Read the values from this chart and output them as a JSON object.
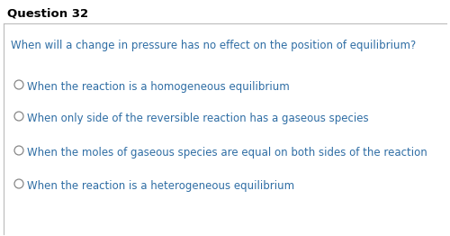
{
  "title": "Question 32",
  "question": "When will a change in pressure has no effect on the position of equilibrium?",
  "options": [
    "When the reaction is a homogeneous equilibrium",
    "When only side of the reversible reaction has a gaseous species",
    "When the moles of gaseous species are equal on both sides of the reaction",
    "When the reaction is a heterogeneous equilibrium"
  ],
  "bg_color": "#ffffff",
  "title_color": "#000000",
  "question_color": "#2e6da4",
  "option_color": "#2e6da4",
  "border_color": "#bbbbbb",
  "title_fontsize": 9.5,
  "question_fontsize": 8.5,
  "option_fontsize": 8.5,
  "radio_color": "#888888",
  "fig_width": 5.0,
  "fig_height": 2.62,
  "dpi": 100
}
